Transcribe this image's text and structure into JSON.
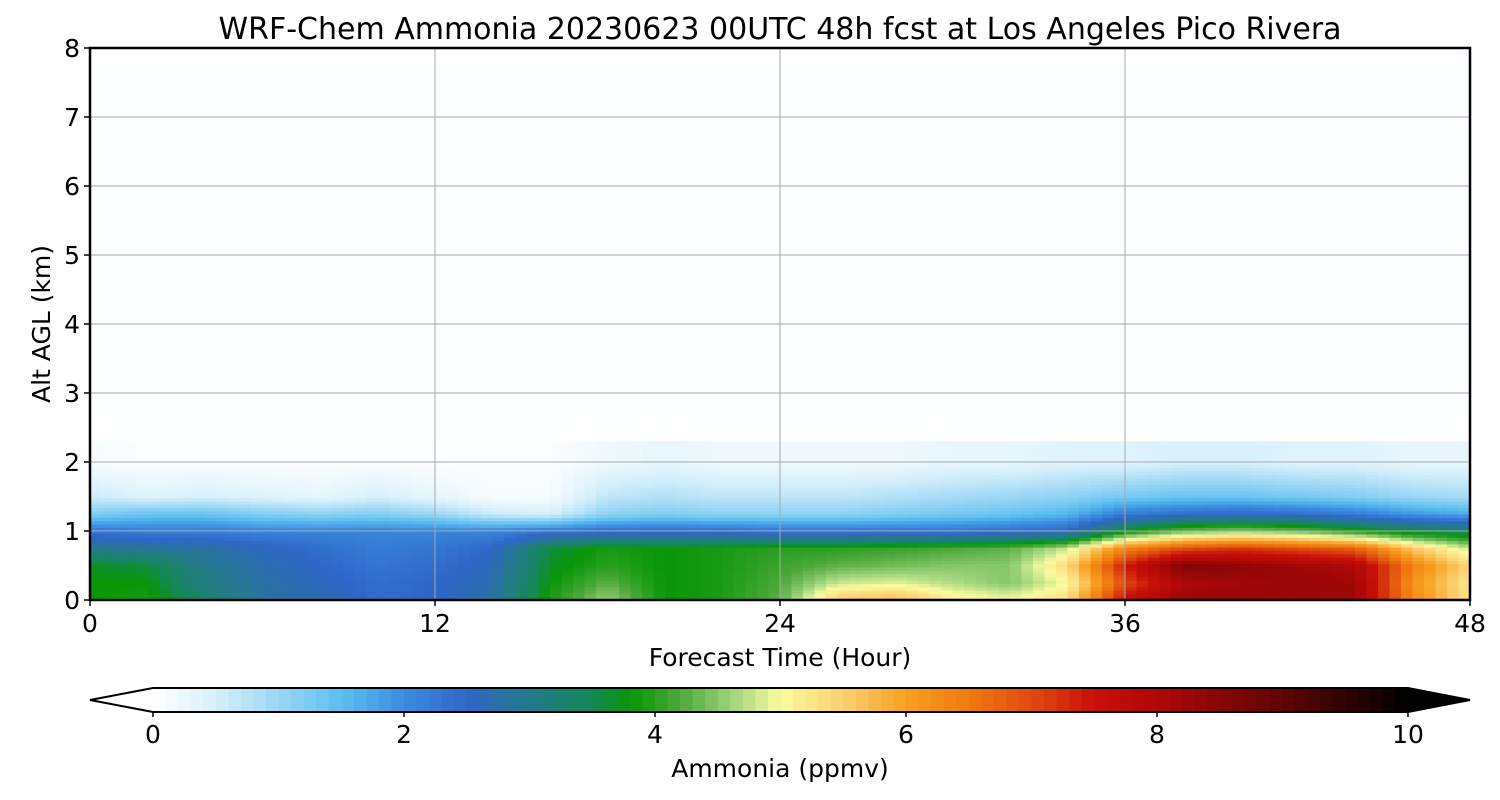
{
  "chart_data": {
    "type": "heatmap",
    "title": "WRF-Chem Ammonia  20230623 00UTC 48h fcst at Los Angeles Pico Rivera",
    "xlabel": "Forecast Time (Hour)",
    "ylabel": "Alt AGL (km)",
    "xlim": [
      0,
      48
    ],
    "ylim": [
      0,
      8
    ],
    "x_ticks": [
      0,
      12,
      24,
      36,
      48
    ],
    "y_ticks": [
      0,
      1,
      2,
      3,
      4,
      5,
      6,
      7,
      8
    ],
    "grid": true,
    "colorbar": {
      "label": "Ammonia  (ppmv)",
      "min": 0,
      "max": 10,
      "ticks": [
        0,
        2,
        4,
        6,
        8,
        10
      ],
      "extend": "both",
      "stops": [
        [
          0,
          "#ffffff"
        ],
        [
          0.5,
          "#d6f0fb"
        ],
        [
          1,
          "#9ad6f5"
        ],
        [
          1.5,
          "#5dbff0"
        ],
        [
          2,
          "#3a8ce0"
        ],
        [
          2.5,
          "#2f66c8"
        ],
        [
          3,
          "#247a8a"
        ],
        [
          3.5,
          "#15885a"
        ],
        [
          3.8,
          "#089608"
        ],
        [
          4.2,
          "#4ca83a"
        ],
        [
          4.6,
          "#9cd27a"
        ],
        [
          5,
          "#fbfba0"
        ],
        [
          5.5,
          "#fbd070"
        ],
        [
          6,
          "#f8a020"
        ],
        [
          6.5,
          "#f07a10"
        ],
        [
          7,
          "#e04a10"
        ],
        [
          7.5,
          "#c81008"
        ],
        [
          8,
          "#b00808"
        ],
        [
          9,
          "#600404"
        ],
        [
          10,
          "#000000"
        ]
      ]
    },
    "heights_km": [
      0,
      0.25,
      0.5,
      0.75,
      1.0,
      1.25,
      1.5,
      2.0,
      8.0
    ],
    "times_h": [
      0,
      2,
      4,
      6,
      8,
      10,
      12,
      14,
      16,
      18,
      20,
      22,
      24,
      26,
      28,
      30,
      32,
      34,
      36,
      38,
      40,
      42,
      44,
      46,
      48
    ],
    "values_ppmv": [
      [
        3.8,
        3.9,
        3.3,
        2.8,
        2.7,
        2.4,
        2.5,
        2.8,
        3.9,
        4.6,
        3.8,
        3.9,
        4.3,
        5.6,
        5.8,
        5.2,
        5.0,
        5.4,
        7.6,
        8.3,
        8.3,
        8.3,
        8.2,
        6.3,
        5.3
      ],
      [
        3.8,
        3.8,
        3.1,
        2.8,
        2.6,
        2.4,
        2.5,
        2.7,
        3.8,
        4.3,
        3.8,
        3.9,
        4.2,
        4.8,
        4.9,
        4.7,
        4.5,
        5.0,
        7.0,
        8.0,
        8.2,
        8.3,
        8.2,
        6.2,
        5.2
      ],
      [
        3.7,
        3.6,
        3.0,
        2.7,
        2.5,
        2.3,
        2.4,
        2.6,
        3.7,
        4.0,
        3.8,
        3.9,
        4.1,
        4.3,
        4.4,
        4.5,
        4.5,
        5.4,
        7.4,
        8.6,
        8.4,
        8.2,
        8.0,
        6.4,
        5.4
      ],
      [
        3.0,
        2.9,
        2.8,
        2.6,
        2.4,
        2.2,
        2.3,
        2.5,
        3.6,
        3.9,
        3.8,
        3.9,
        4.0,
        4.0,
        4.1,
        4.2,
        4.3,
        4.8,
        6.4,
        7.0,
        7.2,
        7.0,
        6.8,
        5.6,
        4.8
      ],
      [
        2.3,
        2.2,
        2.2,
        2.1,
        2.1,
        2.1,
        2.1,
        2.1,
        2.3,
        2.4,
        2.4,
        2.4,
        2.3,
        2.3,
        2.3,
        2.3,
        2.4,
        2.5,
        3.8,
        4.4,
        4.6,
        4.4,
        4.0,
        3.6,
        3.4
      ],
      [
        1.2,
        1.4,
        1.4,
        1.2,
        1.1,
        1.2,
        1.0,
        0.6,
        0.5,
        1.1,
        1.2,
        1.1,
        1.1,
        1.1,
        1.2,
        1.3,
        1.4,
        1.6,
        2.2,
        2.4,
        2.5,
        2.4,
        2.2,
        1.9,
        1.7
      ],
      [
        0.6,
        0.4,
        0.5,
        0.4,
        0.3,
        0.5,
        0.3,
        0.1,
        0.1,
        0.7,
        0.8,
        0.7,
        0.7,
        0.7,
        0.8,
        0.9,
        1.0,
        1.1,
        1.3,
        1.4,
        1.4,
        1.3,
        1.2,
        1.0,
        0.9
      ],
      [
        0.1,
        0.05,
        0.05,
        0.05,
        0.05,
        0.05,
        0.05,
        0.05,
        0.05,
        0.2,
        0.3,
        0.2,
        0.2,
        0.2,
        0.2,
        0.3,
        0.3,
        0.4,
        0.4,
        0.5,
        0.5,
        0.4,
        0.4,
        0.3,
        0.3
      ],
      [
        0.02,
        0.02,
        0.02,
        0.02,
        0.02,
        0.02,
        0.02,
        0.02,
        0.02,
        0.02,
        0.02,
        0.02,
        0.02,
        0.02,
        0.02,
        0.02,
        0.02,
        0.02,
        0.02,
        0.02,
        0.02,
        0.02,
        0.02,
        0.02,
        0.02
      ]
    ]
  }
}
